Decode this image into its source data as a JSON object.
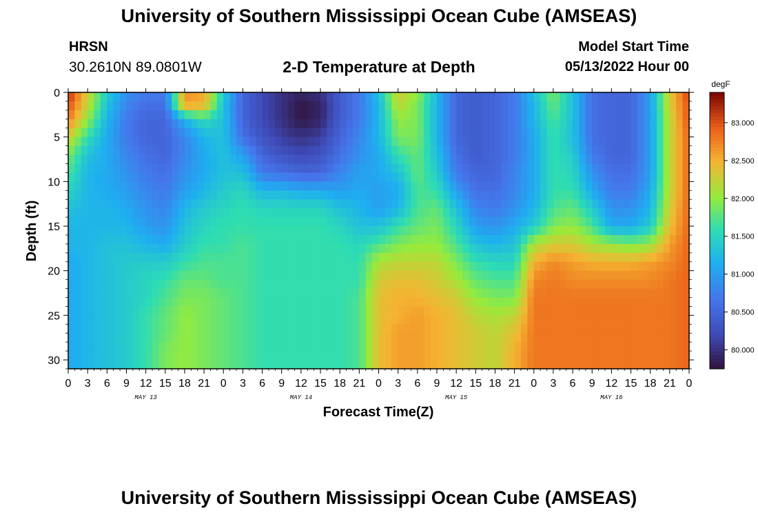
{
  "header": {
    "title": "University of Southern Mississippi Ocean Cube (AMSEAS)",
    "station": "HRSN",
    "coordinates": "30.2610N  89.0801W",
    "subtitle": "2-D Temperature at Depth",
    "start_label": "Model Start Time",
    "start_value": "05/13/2022 Hour 00"
  },
  "footer": {
    "title": "University of Southern Mississippi Ocean Cube (AMSEAS)"
  },
  "chart_data": {
    "type": "heatmap",
    "title": "2-D Temperature at Depth",
    "xlabel": "Forecast Time(Z)",
    "ylabel": "Depth (ft)",
    "xlim": [
      0,
      96
    ],
    "ylim": [
      0,
      31
    ],
    "y_inverted": true,
    "x_tick_labels": [
      "0",
      "3",
      "6",
      "9",
      "12",
      "15",
      "18",
      "21",
      "0",
      "3",
      "6",
      "9",
      "12",
      "15",
      "18",
      "21",
      "0",
      "3",
      "6",
      "9",
      "12",
      "15",
      "18",
      "21",
      "0",
      "3",
      "6",
      "9",
      "12",
      "15",
      "18",
      "21",
      "0"
    ],
    "y_ticks": [
      0,
      5,
      10,
      15,
      20,
      25,
      30
    ],
    "day_labels": [
      {
        "label": "MAY 13",
        "hour": 12
      },
      {
        "label": "MAY 14",
        "hour": 36
      },
      {
        "label": "MAY 15",
        "hour": 60
      },
      {
        "label": "MAY 16",
        "hour": 84
      }
    ],
    "colorbar": {
      "units": "degF",
      "min": 79.75,
      "max": 83.4,
      "ticks": [
        80.0,
        80.5,
        81.0,
        81.5,
        82.0,
        82.5,
        83.0
      ],
      "tick_labels": [
        "80.000",
        "80.500",
        "81.000",
        "81.500",
        "82.000",
        "82.500",
        "83.000"
      ]
    },
    "depth_levels": [
      0,
      1.5,
      3,
      5,
      7,
      9,
      11,
      13,
      15,
      17,
      19,
      21,
      23,
      25,
      27,
      29,
      31
    ],
    "time_columns_hours": [
      0,
      3,
      6,
      9,
      12,
      15,
      18,
      21,
      24,
      27,
      30,
      33,
      36,
      39,
      42,
      45,
      48,
      51,
      54,
      57,
      60,
      63,
      66,
      69,
      72,
      75,
      78,
      81,
      84,
      87,
      90,
      93,
      96
    ],
    "temperature_profiles": [
      [
        83.2,
        83.0,
        82.8,
        82.3,
        81.9,
        81.7,
        81.5,
        81.3,
        81.2,
        81.2,
        81.1,
        81.1,
        81.1,
        81.1,
        81.1,
        81.1,
        81.1
      ],
      [
        82.3,
        82.2,
        82.0,
        81.6,
        81.3,
        81.2,
        81.2,
        81.2,
        81.2,
        81.2,
        81.2,
        81.2,
        81.2,
        81.2,
        81.2,
        81.2,
        81.2
      ],
      [
        81.4,
        81.3,
        81.2,
        81.1,
        81.1,
        81.1,
        81.1,
        81.2,
        81.2,
        81.3,
        81.3,
        81.3,
        81.3,
        81.3,
        81.3,
        81.3,
        81.3
      ],
      [
        80.9,
        80.8,
        80.7,
        80.7,
        80.8,
        80.9,
        81.0,
        81.1,
        81.2,
        81.3,
        81.4,
        81.4,
        81.4,
        81.4,
        81.4,
        81.4,
        81.4
      ],
      [
        80.7,
        80.6,
        80.5,
        80.5,
        80.6,
        80.7,
        80.8,
        80.9,
        81.0,
        81.2,
        81.4,
        81.5,
        81.5,
        81.6,
        81.6,
        81.6,
        81.6
      ],
      [
        80.7,
        80.6,
        80.5,
        80.5,
        80.5,
        80.6,
        80.7,
        80.8,
        80.9,
        81.1,
        81.4,
        81.6,
        81.7,
        81.8,
        81.8,
        81.9,
        81.9
      ],
      [
        82.7,
        82.5,
        81.2,
        80.8,
        80.8,
        80.9,
        81.0,
        81.2,
        81.3,
        81.4,
        81.6,
        81.8,
        81.9,
        82.0,
        82.0,
        82.0,
        82.0
      ],
      [
        82.6,
        82.4,
        81.6,
        81.2,
        81.1,
        81.1,
        81.2,
        81.4,
        81.5,
        81.6,
        81.7,
        81.8,
        81.9,
        81.9,
        81.9,
        81.9,
        81.9
      ],
      [
        81.4,
        81.3,
        81.3,
        81.3,
        81.3,
        81.3,
        81.4,
        81.5,
        81.6,
        81.6,
        81.7,
        81.7,
        81.8,
        81.8,
        81.8,
        81.8,
        81.8
      ],
      [
        80.5,
        80.5,
        80.5,
        80.6,
        81.0,
        81.3,
        81.5,
        81.6,
        81.6,
        81.7,
        81.7,
        81.7,
        81.7,
        81.7,
        81.7,
        81.7,
        81.7
      ],
      [
        80.2,
        80.2,
        80.2,
        80.3,
        80.5,
        80.7,
        81.2,
        81.5,
        81.6,
        81.6,
        81.6,
        81.6,
        81.6,
        81.6,
        81.6,
        81.6,
        81.6
      ],
      [
        80.0,
        80.0,
        80.0,
        80.1,
        80.3,
        80.6,
        81.2,
        81.5,
        81.6,
        81.6,
        81.6,
        81.6,
        81.6,
        81.6,
        81.6,
        81.6,
        81.6
      ],
      [
        79.9,
        79.8,
        79.8,
        80.0,
        80.2,
        80.5,
        81.1,
        81.5,
        81.6,
        81.6,
        81.6,
        81.6,
        81.6,
        81.6,
        81.6,
        81.6,
        81.6
      ],
      [
        80.0,
        79.9,
        79.9,
        80.1,
        80.3,
        80.5,
        81.1,
        81.5,
        81.6,
        81.6,
        81.6,
        81.6,
        81.6,
        81.6,
        81.6,
        81.6,
        81.6
      ],
      [
        80.4,
        80.4,
        80.4,
        80.5,
        80.6,
        80.8,
        81.0,
        81.3,
        81.5,
        81.6,
        81.6,
        81.6,
        81.6,
        81.6,
        81.6,
        81.6,
        81.6
      ],
      [
        80.7,
        80.7,
        80.7,
        80.8,
        80.9,
        81.0,
        81.1,
        81.2,
        81.3,
        81.5,
        81.6,
        81.6,
        81.7,
        81.7,
        81.7,
        81.7,
        81.7
      ],
      [
        81.3,
        81.2,
        81.2,
        81.2,
        81.1,
        81.1,
        81.0,
        81.0,
        81.3,
        81.7,
        82.1,
        82.3,
        82.4,
        82.4,
        82.4,
        82.4,
        82.4
      ],
      [
        82.3,
        82.2,
        82.0,
        81.9,
        81.6,
        81.3,
        81.1,
        81.2,
        81.6,
        81.9,
        82.2,
        82.4,
        82.5,
        82.5,
        82.6,
        82.6,
        82.6
      ],
      [
        82.0,
        81.9,
        81.9,
        81.9,
        81.8,
        81.8,
        81.7,
        81.7,
        81.8,
        82.0,
        82.2,
        82.4,
        82.5,
        82.6,
        82.6,
        82.6,
        82.6
      ],
      [
        81.2,
        81.2,
        81.2,
        81.2,
        81.3,
        81.4,
        81.6,
        81.8,
        81.9,
        82.0,
        82.2,
        82.3,
        82.4,
        82.5,
        82.5,
        82.5,
        82.5
      ],
      [
        80.5,
        80.5,
        80.5,
        80.5,
        80.6,
        80.7,
        81.0,
        81.3,
        81.5,
        81.7,
        81.9,
        82.1,
        82.3,
        82.4,
        82.4,
        82.4,
        82.4
      ],
      [
        80.4,
        80.4,
        80.4,
        80.4,
        80.4,
        80.5,
        80.6,
        80.8,
        81.0,
        81.3,
        81.6,
        81.8,
        82.0,
        82.2,
        82.3,
        82.3,
        82.3
      ],
      [
        80.5,
        80.5,
        80.5,
        80.5,
        80.5,
        80.5,
        80.6,
        80.7,
        80.9,
        81.2,
        81.5,
        81.7,
        81.9,
        82.1,
        82.2,
        82.2,
        82.2
      ],
      [
        80.7,
        80.7,
        80.7,
        80.7,
        80.7,
        80.8,
        80.8,
        80.9,
        81.1,
        81.3,
        81.5,
        81.7,
        81.9,
        82.2,
        82.4,
        82.5,
        82.5
      ],
      [
        81.3,
        81.2,
        81.2,
        81.1,
        81.1,
        81.1,
        81.1,
        81.2,
        81.4,
        82.1,
        82.5,
        82.7,
        82.8,
        82.8,
        82.8,
        82.8,
        82.8
      ],
      [
        81.9,
        81.8,
        81.7,
        81.6,
        81.6,
        81.6,
        81.6,
        81.7,
        81.9,
        82.3,
        82.7,
        82.8,
        82.8,
        82.8,
        82.8,
        82.8,
        82.8
      ],
      [
        81.3,
        81.3,
        81.3,
        81.3,
        81.4,
        81.5,
        81.6,
        81.8,
        82.0,
        82.3,
        82.6,
        82.7,
        82.8,
        82.8,
        82.8,
        82.8,
        82.8
      ],
      [
        80.6,
        80.6,
        80.6,
        80.6,
        80.7,
        80.9,
        81.1,
        81.4,
        81.7,
        82.1,
        82.5,
        82.7,
        82.8,
        82.8,
        82.8,
        82.8,
        82.8
      ],
      [
        80.5,
        80.5,
        80.5,
        80.5,
        80.5,
        80.6,
        80.7,
        80.9,
        81.1,
        82.0,
        82.5,
        82.7,
        82.8,
        82.8,
        82.8,
        82.8,
        82.8
      ],
      [
        80.5,
        80.5,
        80.5,
        80.5,
        80.5,
        80.6,
        80.7,
        80.9,
        81.1,
        81.9,
        82.5,
        82.7,
        82.8,
        82.8,
        82.8,
        82.8,
        82.8
      ],
      [
        81.0,
        81.0,
        81.0,
        81.0,
        81.0,
        81.0,
        81.1,
        81.2,
        81.4,
        82.0,
        82.6,
        82.7,
        82.8,
        82.8,
        82.8,
        82.8,
        82.8
      ],
      [
        82.3,
        82.3,
        82.2,
        82.2,
        82.2,
        82.2,
        82.2,
        82.3,
        82.4,
        82.6,
        82.7,
        82.8,
        82.8,
        82.8,
        82.8,
        82.8,
        82.8
      ],
      [
        83.1,
        83.0,
        83.0,
        82.9,
        82.9,
        82.9,
        82.9,
        82.9,
        82.9,
        82.9,
        82.9,
        82.9,
        82.9,
        82.9,
        82.9,
        82.9,
        82.9
      ]
    ]
  }
}
